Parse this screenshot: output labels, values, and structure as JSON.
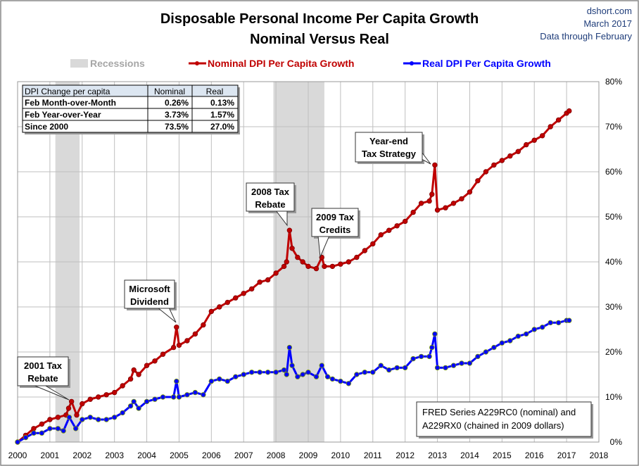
{
  "chart_data": {
    "type": "line",
    "title": "Disposable Personal Income Per Capita Growth",
    "subtitle": "Nominal Versus Real",
    "source_lines": [
      "dshort.com",
      "March 2017",
      "Data through February"
    ],
    "xlim": [
      2000,
      2018
    ],
    "ylim": [
      0,
      80
    ],
    "x_ticks": [
      "2000",
      "2001",
      "2002",
      "2003",
      "2004",
      "2005",
      "2006",
      "2007",
      "2008",
      "2009",
      "2010",
      "2011",
      "2012",
      "2013",
      "2014",
      "2015",
      "2016",
      "2017",
      "2018"
    ],
    "y_ticks": [
      "0%",
      "10%",
      "20%",
      "30%",
      "40%",
      "50%",
      "60%",
      "70%",
      "80%"
    ],
    "y_axis_side": "right",
    "grid": true,
    "legend_placement": "top",
    "legend": {
      "recessions": "Recessions",
      "nominal": "Nominal DPI Per Capita Growth",
      "real": "Real DPI Per Capita Growth"
    },
    "recessions": [
      [
        2001.17,
        2001.92
      ],
      [
        2007.92,
        2009.5
      ]
    ],
    "colors": {
      "nominal": "#c00000",
      "real": "#0000ff",
      "recession": "#d9d9d9",
      "marker_edge_real": "#7a9a00"
    },
    "series": [
      {
        "name": "Nominal DPI Per Capita Growth",
        "color": "#c00000",
        "x": [
          2000.0,
          2000.25,
          2000.5,
          2000.75,
          2001.0,
          2001.25,
          2001.5,
          2001.58,
          2001.67,
          2001.83,
          2002.0,
          2002.25,
          2002.5,
          2002.75,
          2003.0,
          2003.25,
          2003.5,
          2003.6,
          2003.75,
          2004.0,
          2004.25,
          2004.5,
          2004.83,
          2004.92,
          2005.0,
          2005.25,
          2005.5,
          2005.75,
          2006.0,
          2006.25,
          2006.5,
          2006.75,
          2007.0,
          2007.25,
          2007.5,
          2007.75,
          2008.0,
          2008.25,
          2008.33,
          2008.42,
          2008.5,
          2008.67,
          2008.83,
          2009.0,
          2009.25,
          2009.42,
          2009.5,
          2009.75,
          2010.0,
          2010.25,
          2010.5,
          2010.75,
          2011.0,
          2011.25,
          2011.5,
          2011.75,
          2012.0,
          2012.25,
          2012.5,
          2012.75,
          2012.83,
          2012.92,
          2013.0,
          2013.25,
          2013.5,
          2013.75,
          2014.0,
          2014.25,
          2014.5,
          2014.75,
          2015.0,
          2015.25,
          2015.5,
          2015.75,
          2016.0,
          2016.25,
          2016.5,
          2016.75,
          2017.0,
          2017.08
        ],
        "values": [
          0,
          1.5,
          3,
          4,
          5,
          5.5,
          6,
          7.5,
          9,
          6,
          8.5,
          9.5,
          10,
          10.5,
          11,
          12.5,
          14,
          16,
          15,
          17,
          18,
          19.5,
          21,
          25.5,
          21.5,
          22.5,
          24,
          26,
          29,
          30,
          31,
          32,
          33,
          34,
          35.5,
          36,
          37.5,
          39,
          40,
          47,
          43,
          41,
          40,
          39,
          38.5,
          41,
          39,
          39,
          39.5,
          40,
          41,
          42.5,
          44,
          46,
          47,
          48,
          49,
          51,
          53,
          53.5,
          55,
          61.5,
          51.5,
          52,
          53,
          54,
          55.5,
          58,
          60,
          61.5,
          62.5,
          63.5,
          64.5,
          66,
          67,
          68,
          70,
          71.5,
          73,
          73.5
        ]
      },
      {
        "name": "Real DPI Per Capita Growth",
        "color": "#0000ff",
        "x": [
          2000.0,
          2000.25,
          2000.5,
          2000.75,
          2001.0,
          2001.25,
          2001.42,
          2001.6,
          2001.8,
          2002.0,
          2002.25,
          2002.5,
          2002.75,
          2003.0,
          2003.25,
          2003.5,
          2003.6,
          2003.75,
          2004.0,
          2004.25,
          2004.5,
          2004.83,
          2004.92,
          2005.0,
          2005.25,
          2005.5,
          2005.75,
          2006.0,
          2006.25,
          2006.5,
          2006.75,
          2007.0,
          2007.25,
          2007.5,
          2007.75,
          2008.0,
          2008.25,
          2008.33,
          2008.42,
          2008.5,
          2008.67,
          2008.83,
          2009.0,
          2009.25,
          2009.42,
          2009.6,
          2009.75,
          2010.0,
          2010.25,
          2010.5,
          2010.75,
          2011.0,
          2011.25,
          2011.5,
          2011.75,
          2012.0,
          2012.25,
          2012.5,
          2012.75,
          2012.83,
          2012.92,
          2013.0,
          2013.25,
          2013.5,
          2013.75,
          2014.0,
          2014.25,
          2014.5,
          2014.75,
          2015.0,
          2015.25,
          2015.5,
          2015.75,
          2016.0,
          2016.25,
          2016.5,
          2016.75,
          2017.0,
          2017.08
        ],
        "values": [
          0,
          1,
          2,
          2,
          3,
          3,
          2.5,
          5.5,
          3,
          5,
          5.5,
          5,
          5,
          5.5,
          6.5,
          8,
          9,
          7.5,
          9,
          9.5,
          10,
          10,
          13.5,
          10,
          10.5,
          11,
          10.5,
          13.5,
          14,
          13.5,
          14.5,
          15,
          15.5,
          15.5,
          15.5,
          15.5,
          16,
          15,
          21,
          17,
          14.5,
          15,
          15.5,
          14.5,
          17,
          14.5,
          14,
          13.5,
          13,
          15,
          15.5,
          15.5,
          17,
          16,
          16.5,
          16.5,
          18.5,
          19,
          19,
          21,
          24,
          16.5,
          16.5,
          17,
          17.5,
          17.5,
          19,
          20,
          21,
          22,
          22.5,
          23.5,
          24,
          25,
          25.5,
          26.5,
          26.5,
          27,
          27
        ]
      }
    ],
    "annotations": [
      {
        "text": "2001 Tax\nRebate",
        "x": 2001.67
      },
      {
        "text": "Microsoft\nDividend",
        "x": 2004.92
      },
      {
        "text": "2008 Tax\nRebate",
        "x": 2008.42
      },
      {
        "text": "2009 Tax\nCredits",
        "x": 2009.42
      },
      {
        "text": "Year-end\nTax Strategy",
        "x": 2012.92
      }
    ],
    "table": {
      "headers": [
        "DPI Change per capita",
        "Nominal",
        "Real"
      ],
      "rows": [
        [
          "Feb Month-over-Month",
          "0.26%",
          "0.13%"
        ],
        [
          "Feb Year-over-Year",
          "3.73%",
          "1.57%"
        ],
        [
          "Since 2000",
          "73.5%",
          "27.0%"
        ]
      ]
    },
    "note": [
      "FRED Series A229RC0 (nominal)  and",
      "A229RX0 (chained in 2009 dollars)"
    ]
  }
}
